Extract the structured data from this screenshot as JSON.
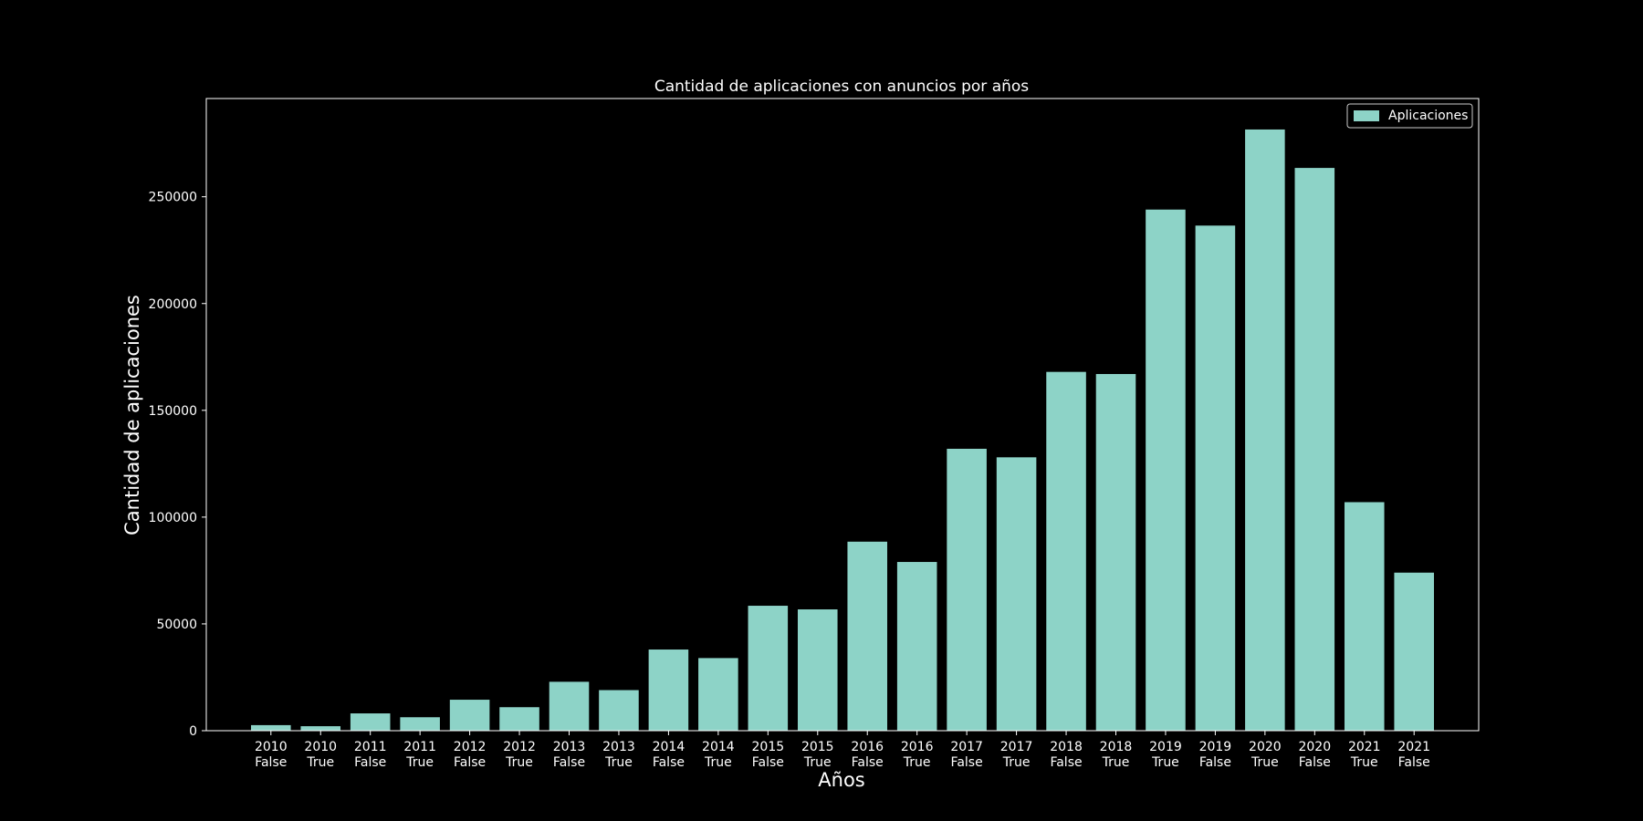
{
  "chart_data": {
    "type": "bar",
    "title": "Cantidad de aplicaciones con anuncios por años",
    "xlabel": "Años",
    "ylabel": "Cantidad de aplicaciones",
    "categories": [
      [
        "2010",
        "False"
      ],
      [
        "2010",
        "True"
      ],
      [
        "2011",
        "False"
      ],
      [
        "2011",
        "True"
      ],
      [
        "2012",
        "False"
      ],
      [
        "2012",
        "True"
      ],
      [
        "2013",
        "False"
      ],
      [
        "2013",
        "True"
      ],
      [
        "2014",
        "False"
      ],
      [
        "2014",
        "True"
      ],
      [
        "2015",
        "False"
      ],
      [
        "2015",
        "True"
      ],
      [
        "2016",
        "False"
      ],
      [
        "2016",
        "True"
      ],
      [
        "2017",
        "False"
      ],
      [
        "2017",
        "True"
      ],
      [
        "2018",
        "False"
      ],
      [
        "2018",
        "True"
      ],
      [
        "2019",
        "True"
      ],
      [
        "2019",
        "False"
      ],
      [
        "2020",
        "True"
      ],
      [
        "2020",
        "False"
      ],
      [
        "2021",
        "True"
      ],
      [
        "2021",
        "False"
      ]
    ],
    "series": [
      {
        "name": "Aplicaciones",
        "color": "#8dd3c7",
        "values": [
          2600,
          2100,
          8100,
          6300,
          14500,
          11000,
          22900,
          19000,
          38000,
          34000,
          58500,
          56800,
          88500,
          79000,
          132000,
          128000,
          168000,
          167000,
          244000,
          236500,
          281500,
          263500,
          107000,
          74000
        ]
      }
    ],
    "ylim": [
      0,
      296000
    ],
    "yticks": [
      0,
      50000,
      100000,
      150000,
      200000,
      250000
    ],
    "ytick_labels": [
      "0",
      "50000",
      "100000",
      "150000",
      "200000",
      "250000"
    ],
    "grid": false,
    "legend": {
      "position": "top-right",
      "labels": [
        "Aplicaciones"
      ]
    },
    "colors": {
      "background": "#000000",
      "axes": "#ffffff",
      "text": "#ffffff"
    }
  }
}
